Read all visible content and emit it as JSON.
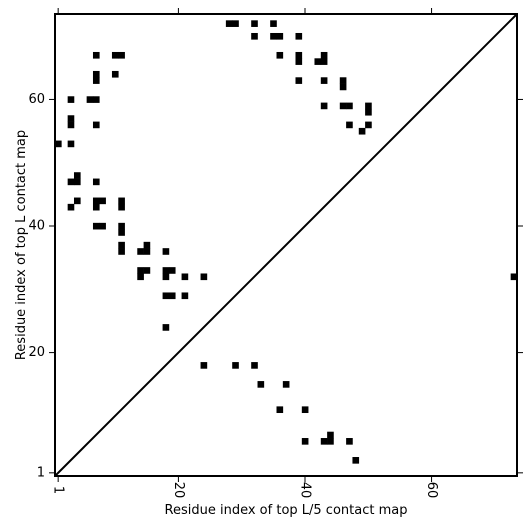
{
  "chart_data": {
    "type": "heatmap",
    "title": "",
    "xlabel": "Residue index of top L/5 contact map",
    "ylabel": "Residue index of top L contact map",
    "xlim": [
      0.5,
      73.5
    ],
    "ylim": [
      0.5,
      73.5
    ],
    "x_ticks": [
      {
        "value": 1,
        "label": "1"
      },
      {
        "value": 20,
        "label": "20"
      },
      {
        "value": 40,
        "label": "40"
      },
      {
        "value": 60,
        "label": "60"
      }
    ],
    "y_ticks": [
      {
        "value": 1,
        "label": "1"
      },
      {
        "value": 20,
        "label": "20"
      },
      {
        "value": 40,
        "label": "40"
      },
      {
        "value": 60,
        "label": "60"
      }
    ],
    "diagonal": true,
    "grid": false,
    "cell_color": "#000000",
    "contacts_upper": [
      [
        28,
        72
      ],
      [
        29,
        72
      ],
      [
        32,
        72
      ],
      [
        35,
        72
      ],
      [
        32,
        70
      ],
      [
        35,
        70
      ],
      [
        36,
        70
      ],
      [
        39,
        70
      ],
      [
        7,
        67
      ],
      [
        10,
        67
      ],
      [
        11,
        67
      ],
      [
        36,
        67
      ],
      [
        39,
        67
      ],
      [
        43,
        67
      ],
      [
        39,
        66
      ],
      [
        42,
        66
      ],
      [
        43,
        66
      ],
      [
        10,
        64
      ],
      [
        7,
        64
      ],
      [
        7,
        63
      ],
      [
        39,
        63
      ],
      [
        43,
        63
      ],
      [
        46,
        63
      ],
      [
        46,
        62
      ],
      [
        3,
        60
      ],
      [
        6,
        60
      ],
      [
        7,
        60
      ],
      [
        43,
        59
      ],
      [
        46,
        59
      ],
      [
        47,
        59
      ],
      [
        50,
        59
      ],
      [
        50,
        58
      ],
      [
        3,
        57
      ],
      [
        3,
        56
      ],
      [
        7,
        56
      ],
      [
        47,
        56
      ],
      [
        50,
        56
      ],
      [
        49,
        55
      ],
      [
        1,
        53
      ],
      [
        3,
        53
      ],
      [
        4,
        48
      ],
      [
        3,
        47
      ],
      [
        4,
        47
      ],
      [
        7,
        47
      ],
      [
        4,
        44
      ],
      [
        7,
        44
      ],
      [
        8,
        44
      ],
      [
        11,
        44
      ],
      [
        7,
        43
      ],
      [
        11,
        43
      ],
      [
        3,
        43
      ],
      [
        7,
        40
      ],
      [
        8,
        40
      ],
      [
        11,
        40
      ],
      [
        11,
        39
      ],
      [
        11,
        37
      ],
      [
        15,
        37
      ],
      [
        11,
        36
      ],
      [
        14,
        36
      ],
      [
        15,
        36
      ],
      [
        18,
        36
      ],
      [
        14,
        33
      ],
      [
        15,
        33
      ],
      [
        18,
        33
      ],
      [
        19,
        33
      ],
      [
        14,
        32
      ],
      [
        18,
        32
      ],
      [
        21,
        32
      ],
      [
        24,
        32
      ],
      [
        18,
        29
      ],
      [
        19,
        29
      ],
      [
        21,
        29
      ],
      [
        18,
        24
      ]
    ],
    "contacts_lower": [
      [
        24,
        18
      ],
      [
        29,
        18
      ],
      [
        32,
        18
      ],
      [
        33,
        15
      ],
      [
        37,
        15
      ],
      [
        36,
        11
      ],
      [
        40,
        11
      ],
      [
        44,
        7
      ],
      [
        40,
        6
      ],
      [
        43,
        6
      ],
      [
        44,
        6
      ],
      [
        47,
        6
      ],
      [
        48,
        3
      ],
      [
        73,
        32
      ]
    ]
  }
}
